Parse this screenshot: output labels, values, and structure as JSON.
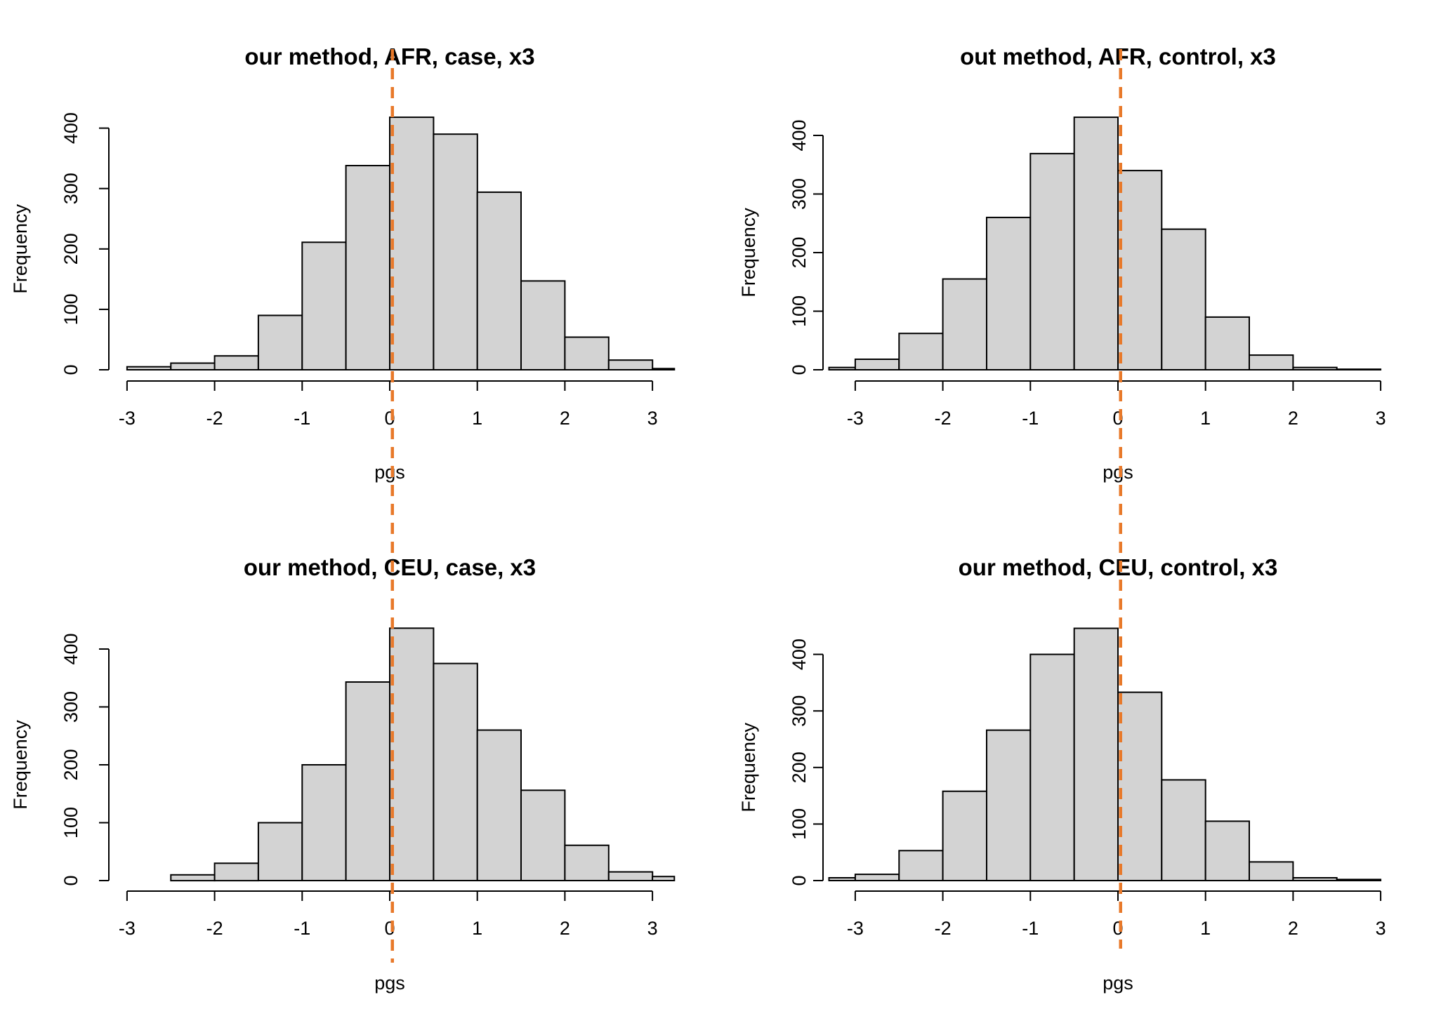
{
  "chart_data": [
    {
      "type": "bar",
      "title": "our method, AFR, case, x3",
      "xlabel": "pgs",
      "ylabel": "Frequency",
      "xlim": [
        -3.3,
        3.25
      ],
      "ylim": [
        0,
        450
      ],
      "xticks": [
        -3,
        -2,
        -1,
        0,
        1,
        2,
        3
      ],
      "yticks": [
        0,
        100,
        200,
        300,
        400
      ],
      "vline": 0.03,
      "bins": [
        {
          "x0": -3.0,
          "x1": -2.5,
          "value": 5
        },
        {
          "x0": -2.5,
          "x1": -2.0,
          "value": 11
        },
        {
          "x0": -2.0,
          "x1": -1.5,
          "value": 23
        },
        {
          "x0": -1.5,
          "x1": -1.0,
          "value": 90
        },
        {
          "x0": -1.0,
          "x1": -0.5,
          "value": 211
        },
        {
          "x0": -0.5,
          "x1": 0.0,
          "value": 338
        },
        {
          "x0": 0.0,
          "x1": 0.5,
          "value": 418
        },
        {
          "x0": 0.5,
          "x1": 1.0,
          "value": 390
        },
        {
          "x0": 1.0,
          "x1": 1.5,
          "value": 294
        },
        {
          "x0": 1.5,
          "x1": 2.0,
          "value": 147
        },
        {
          "x0": 2.0,
          "x1": 2.5,
          "value": 54
        },
        {
          "x0": 2.5,
          "x1": 3.0,
          "value": 16
        },
        {
          "x0": 3.0,
          "x1": 3.5,
          "value": 2
        }
      ]
    },
    {
      "type": "bar",
      "title": "out method, AFR, control, x3",
      "xlabel": "pgs",
      "ylabel": "Frequency",
      "xlim": [
        -3.3,
        3.0
      ],
      "ylim": [
        0,
        440
      ],
      "xticks": [
        -3,
        -2,
        -1,
        0,
        1,
        2,
        3
      ],
      "yticks": [
        0,
        100,
        200,
        300,
        400
      ],
      "vline": 0.03,
      "bins": [
        {
          "x0": -3.5,
          "x1": -3.0,
          "value": 4
        },
        {
          "x0": -3.0,
          "x1": -2.5,
          "value": 18
        },
        {
          "x0": -2.5,
          "x1": -2.0,
          "value": 62
        },
        {
          "x0": -2.0,
          "x1": -1.5,
          "value": 155
        },
        {
          "x0": -1.5,
          "x1": -1.0,
          "value": 260
        },
        {
          "x0": -1.0,
          "x1": -0.5,
          "value": 369
        },
        {
          "x0": -0.5,
          "x1": 0.0,
          "value": 431
        },
        {
          "x0": 0.0,
          "x1": 0.5,
          "value": 340
        },
        {
          "x0": 0.5,
          "x1": 1.0,
          "value": 240
        },
        {
          "x0": 1.0,
          "x1": 1.5,
          "value": 90
        },
        {
          "x0": 1.5,
          "x1": 2.0,
          "value": 25
        },
        {
          "x0": 2.0,
          "x1": 2.5,
          "value": 4
        },
        {
          "x0": 2.5,
          "x1": 3.0,
          "value": 1
        }
      ]
    },
    {
      "type": "bar",
      "title": "our method, CEU, case, x3",
      "xlabel": "pgs",
      "ylabel": "Frequency",
      "xlim": [
        -3.3,
        3.25
      ],
      "ylim": [
        0,
        450
      ],
      "xticks": [
        -3,
        -2,
        -1,
        0,
        1,
        2,
        3
      ],
      "yticks": [
        0,
        100,
        200,
        300,
        400
      ],
      "vline": 0.03,
      "bins": [
        {
          "x0": -2.5,
          "x1": -2.0,
          "value": 10
        },
        {
          "x0": -2.0,
          "x1": -1.5,
          "value": 30
        },
        {
          "x0": -1.5,
          "x1": -1.0,
          "value": 100
        },
        {
          "x0": -1.0,
          "x1": -0.5,
          "value": 200
        },
        {
          "x0": -0.5,
          "x1": 0.0,
          "value": 343
        },
        {
          "x0": 0.0,
          "x1": 0.5,
          "value": 436
        },
        {
          "x0": 0.5,
          "x1": 1.0,
          "value": 375
        },
        {
          "x0": 1.0,
          "x1": 1.5,
          "value": 260
        },
        {
          "x0": 1.5,
          "x1": 2.0,
          "value": 156
        },
        {
          "x0": 2.0,
          "x1": 2.5,
          "value": 61
        },
        {
          "x0": 2.5,
          "x1": 3.0,
          "value": 15
        },
        {
          "x0": 3.0,
          "x1": 3.5,
          "value": 7
        }
      ]
    },
    {
      "type": "bar",
      "title": "our method, CEU, control, x3",
      "xlabel": "pgs",
      "ylabel": "Frequency",
      "xlim": [
        -3.3,
        3.0
      ],
      "ylim": [
        0,
        440
      ],
      "xticks": [
        -3,
        -2,
        -1,
        0,
        1,
        2,
        3
      ],
      "yticks": [
        0,
        100,
        200,
        300,
        400
      ],
      "vline": 0.03,
      "bins": [
        {
          "x0": -3.5,
          "x1": -3.0,
          "value": 5
        },
        {
          "x0": -3.0,
          "x1": -2.5,
          "value": 11
        },
        {
          "x0": -2.5,
          "x1": -2.0,
          "value": 53
        },
        {
          "x0": -2.0,
          "x1": -1.5,
          "value": 158
        },
        {
          "x0": -1.5,
          "x1": -1.0,
          "value": 266
        },
        {
          "x0": -1.0,
          "x1": -0.5,
          "value": 400
        },
        {
          "x0": -0.5,
          "x1": 0.0,
          "value": 446
        },
        {
          "x0": 0.0,
          "x1": 0.5,
          "value": 333
        },
        {
          "x0": 0.5,
          "x1": 1.0,
          "value": 178
        },
        {
          "x0": 1.0,
          "x1": 1.5,
          "value": 105
        },
        {
          "x0": 1.5,
          "x1": 2.0,
          "value": 33
        },
        {
          "x0": 2.0,
          "x1": 2.5,
          "value": 5
        },
        {
          "x0": 2.5,
          "x1": 3.0,
          "value": 2
        }
      ]
    }
  ]
}
